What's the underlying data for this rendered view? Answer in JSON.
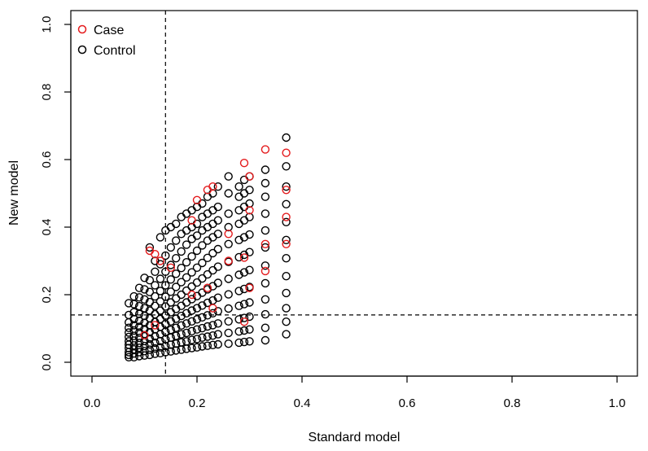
{
  "chart_data": {
    "type": "scatter",
    "title": "",
    "xlabel": "Standard model",
    "ylabel": "New model",
    "xlim": [
      0,
      1
    ],
    "ylim": [
      0,
      1
    ],
    "xticks": [
      "0.0",
      "0.2",
      "0.4",
      "0.6",
      "0.8",
      "1.0"
    ],
    "yticks": [
      "0.0",
      "0.2",
      "0.4",
      "0.6",
      "0.8",
      "1.0"
    ],
    "grid": false,
    "legend_position": "top-left",
    "reference_lines": {
      "vertical_x": 0.14,
      "horizontal_y": 0.14,
      "style": "dashed"
    },
    "x_levels": [
      0.07,
      0.08,
      0.09,
      0.1,
      0.11,
      0.12,
      0.13,
      0.14,
      0.15,
      0.16,
      0.17,
      0.18,
      0.19,
      0.2,
      0.21,
      0.22,
      0.23,
      0.24,
      0.26,
      0.28,
      0.29,
      0.3,
      0.33,
      0.37
    ],
    "series": [
      {
        "name": "Case",
        "color": "#e41a1c",
        "x": [
          0.11,
          0.12,
          0.13,
          0.19,
          0.2,
          0.22,
          0.23,
          0.29,
          0.3,
          0.33,
          0.37,
          0.37,
          0.3,
          0.33,
          0.26,
          0.26,
          0.37,
          0.29,
          0.22,
          0.19,
          0.15,
          0.1,
          0.12,
          0.23,
          0.3,
          0.33,
          0.37,
          0.29
        ],
        "y": [
          0.33,
          0.32,
          0.3,
          0.42,
          0.48,
          0.51,
          0.52,
          0.59,
          0.55,
          0.63,
          0.62,
          0.51,
          0.45,
          0.35,
          0.38,
          0.3,
          0.43,
          0.31,
          0.22,
          0.2,
          0.28,
          0.08,
          0.11,
          0.16,
          0.22,
          0.27,
          0.35,
          0.12
        ]
      },
      {
        "name": "Control",
        "color": "#000000",
        "x": [
          0.07,
          0.07,
          0.07,
          0.07,
          0.07,
          0.07,
          0.07,
          0.07,
          0.07,
          0.07,
          0.07,
          0.07,
          0.08,
          0.08,
          0.08,
          0.08,
          0.08,
          0.08,
          0.08,
          0.08,
          0.08,
          0.08,
          0.08,
          0.08,
          0.09,
          0.09,
          0.09,
          0.09,
          0.09,
          0.09,
          0.09,
          0.09,
          0.09,
          0.09,
          0.09,
          0.09,
          0.1,
          0.1,
          0.1,
          0.1,
          0.1,
          0.1,
          0.1,
          0.1,
          0.1,
          0.1,
          0.1,
          0.1,
          0.11,
          0.11,
          0.11,
          0.11,
          0.11,
          0.11,
          0.11,
          0.11,
          0.11,
          0.11,
          0.11,
          0.11,
          0.12,
          0.12,
          0.12,
          0.12,
          0.12,
          0.12,
          0.12,
          0.12,
          0.12,
          0.12,
          0.12,
          0.12,
          0.13,
          0.13,
          0.13,
          0.13,
          0.13,
          0.13,
          0.13,
          0.13,
          0.13,
          0.13,
          0.13,
          0.13,
          0.14,
          0.14,
          0.14,
          0.14,
          0.14,
          0.14,
          0.14,
          0.14,
          0.14,
          0.14,
          0.14,
          0.14,
          0.15,
          0.15,
          0.15,
          0.15,
          0.15,
          0.15,
          0.15,
          0.15,
          0.15,
          0.15,
          0.15,
          0.15,
          0.16,
          0.16,
          0.16,
          0.16,
          0.16,
          0.16,
          0.16,
          0.16,
          0.16,
          0.16,
          0.16,
          0.16,
          0.17,
          0.17,
          0.17,
          0.17,
          0.17,
          0.17,
          0.17,
          0.17,
          0.17,
          0.17,
          0.17,
          0.17,
          0.18,
          0.18,
          0.18,
          0.18,
          0.18,
          0.18,
          0.18,
          0.18,
          0.18,
          0.18,
          0.18,
          0.18,
          0.19,
          0.19,
          0.19,
          0.19,
          0.19,
          0.19,
          0.19,
          0.19,
          0.19,
          0.19,
          0.19,
          0.19,
          0.2,
          0.2,
          0.2,
          0.2,
          0.2,
          0.2,
          0.2,
          0.2,
          0.2,
          0.2,
          0.2,
          0.2,
          0.21,
          0.21,
          0.21,
          0.21,
          0.21,
          0.21,
          0.21,
          0.21,
          0.21,
          0.21,
          0.21,
          0.21,
          0.22,
          0.22,
          0.22,
          0.22,
          0.22,
          0.22,
          0.22,
          0.22,
          0.22,
          0.22,
          0.22,
          0.22,
          0.23,
          0.23,
          0.23,
          0.23,
          0.23,
          0.23,
          0.23,
          0.23,
          0.23,
          0.23,
          0.23,
          0.23,
          0.24,
          0.24,
          0.24,
          0.24,
          0.24,
          0.24,
          0.24,
          0.24,
          0.24,
          0.24,
          0.24,
          0.24,
          0.26,
          0.26,
          0.26,
          0.26,
          0.26,
          0.26,
          0.26,
          0.26,
          0.26,
          0.26,
          0.26,
          0.26,
          0.28,
          0.28,
          0.28,
          0.28,
          0.28,
          0.28,
          0.28,
          0.28,
          0.28,
          0.28,
          0.28,
          0.28,
          0.29,
          0.29,
          0.29,
          0.29,
          0.29,
          0.29,
          0.29,
          0.29,
          0.29,
          0.29,
          0.29,
          0.29,
          0.3,
          0.3,
          0.3,
          0.3,
          0.3,
          0.3,
          0.3,
          0.3,
          0.3,
          0.3,
          0.3,
          0.3,
          0.33,
          0.33,
          0.33,
          0.33,
          0.33,
          0.33,
          0.33,
          0.33,
          0.33,
          0.33,
          0.33,
          0.33,
          0.37,
          0.37,
          0.37,
          0.37,
          0.37,
          0.37,
          0.37,
          0.37,
          0.37,
          0.37,
          0.37,
          0.37
        ],
        "y": [
          0.015,
          0.022,
          0.03,
          0.042,
          0.052,
          0.062,
          0.075,
          0.088,
          0.102,
          0.118,
          0.14,
          0.175,
          0.015,
          0.026,
          0.038,
          0.05,
          0.064,
          0.078,
          0.094,
          0.11,
          0.128,
          0.148,
          0.172,
          0.195,
          0.018,
          0.03,
          0.043,
          0.057,
          0.072,
          0.088,
          0.105,
          0.123,
          0.143,
          0.166,
          0.192,
          0.22,
          0.02,
          0.033,
          0.048,
          0.063,
          0.08,
          0.098,
          0.117,
          0.137,
          0.16,
          0.186,
          0.216,
          0.25,
          0.022,
          0.037,
          0.053,
          0.07,
          0.089,
          0.109,
          0.13,
          0.153,
          0.178,
          0.208,
          0.243,
          0.34,
          0.025,
          0.041,
          0.058,
          0.077,
          0.097,
          0.119,
          0.142,
          0.167,
          0.195,
          0.228,
          0.268,
          0.3,
          0.027,
          0.044,
          0.063,
          0.083,
          0.105,
          0.128,
          0.153,
          0.18,
          0.211,
          0.247,
          0.29,
          0.37,
          0.03,
          0.048,
          0.068,
          0.09,
          0.113,
          0.138,
          0.165,
          0.194,
          0.228,
          0.268,
          0.316,
          0.39,
          0.032,
          0.052,
          0.073,
          0.096,
          0.121,
          0.148,
          0.177,
          0.209,
          0.245,
          0.288,
          0.34,
          0.4,
          0.035,
          0.055,
          0.078,
          0.102,
          0.129,
          0.158,
          0.189,
          0.223,
          0.262,
          0.308,
          0.36,
          0.41,
          0.037,
          0.059,
          0.083,
          0.109,
          0.137,
          0.167,
          0.2,
          0.237,
          0.279,
          0.328,
          0.38,
          0.43,
          0.04,
          0.062,
          0.087,
          0.115,
          0.145,
          0.177,
          0.212,
          0.251,
          0.296,
          0.348,
          0.39,
          0.44,
          0.042,
          0.066,
          0.092,
          0.121,
          0.153,
          0.187,
          0.224,
          0.266,
          0.313,
          0.365,
          0.4,
          0.45,
          0.044,
          0.069,
          0.097,
          0.127,
          0.16,
          0.196,
          0.236,
          0.28,
          0.33,
          0.375,
          0.41,
          0.46,
          0.047,
          0.073,
          0.101,
          0.133,
          0.168,
          0.206,
          0.248,
          0.294,
          0.346,
          0.39,
          0.43,
          0.47,
          0.049,
          0.076,
          0.106,
          0.139,
          0.176,
          0.216,
          0.26,
          0.309,
          0.36,
          0.4,
          0.44,
          0.49,
          0.051,
          0.079,
          0.11,
          0.145,
          0.183,
          0.225,
          0.272,
          0.323,
          0.37,
          0.41,
          0.45,
          0.5,
          0.053,
          0.083,
          0.115,
          0.151,
          0.191,
          0.235,
          0.283,
          0.335,
          0.38,
          0.42,
          0.46,
          0.52,
          0.055,
          0.087,
          0.121,
          0.159,
          0.201,
          0.247,
          0.297,
          0.35,
          0.4,
          0.44,
          0.5,
          0.55,
          0.058,
          0.091,
          0.127,
          0.167,
          0.211,
          0.259,
          0.311,
          0.362,
          0.41,
          0.45,
          0.49,
          0.52,
          0.06,
          0.094,
          0.131,
          0.172,
          0.217,
          0.266,
          0.318,
          0.37,
          0.42,
          0.46,
          0.5,
          0.54,
          0.062,
          0.097,
          0.135,
          0.177,
          0.223,
          0.273,
          0.326,
          0.378,
          0.43,
          0.47,
          0.51,
          0.55,
          0.065,
          0.102,
          0.142,
          0.186,
          0.234,
          0.286,
          0.34,
          0.39,
          0.44,
          0.49,
          0.53,
          0.57,
          0.083,
          0.12,
          0.16,
          0.205,
          0.255,
          0.308,
          0.362,
          0.415,
          0.468,
          0.52,
          0.58,
          0.665
        ]
      }
    ]
  }
}
